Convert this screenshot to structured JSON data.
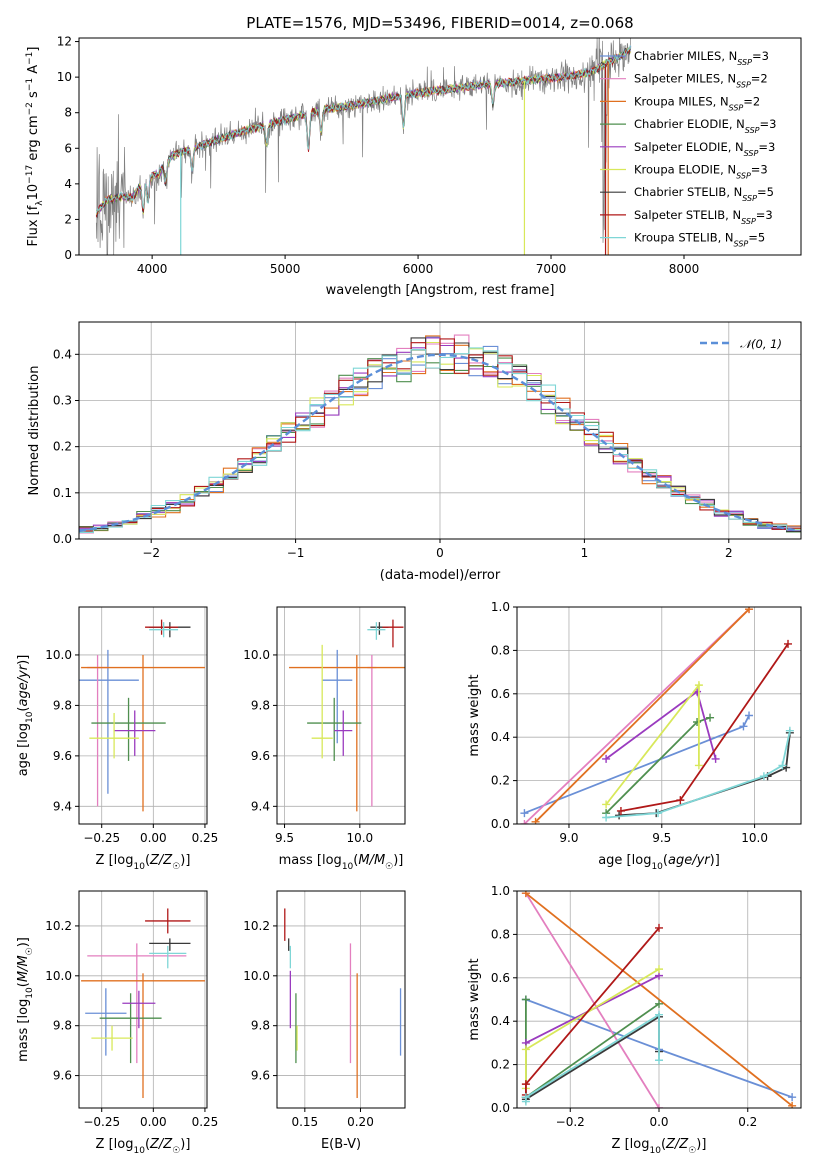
{
  "figure_title": "PLATE=1576, MJD=53496, FIBERID=0014, z=0.068",
  "colors": {
    "Chabrier MILES": "#6a8fd6",
    "Salpeter MILES": "#e37fbf",
    "Kroupa MILES": "#e07020",
    "Chabrier ELODIE": "#4f8f4f",
    "Salpeter ELODIE": "#9a3bbf",
    "Kroupa ELODIE": "#d8e85a",
    "Chabrier STELIB": "#3a3a3a",
    "Salpeter STELIB": "#b01818",
    "Kroupa STELIB": "#7fd6d6",
    "data": "#808080",
    "gauss": "#5b8fd8"
  },
  "chart_data": [
    {
      "id": "spectrum",
      "type": "line",
      "title": "PLATE=1576, MJD=53496, FIBERID=0014, z=0.068",
      "xlabel": "wavelength [Angstrom, rest frame]",
      "ylabel": "Flux [fλ10⁻¹⁷ erg cm⁻² s⁻¹ A⁻¹]",
      "xlim": [
        3450,
        8880
      ],
      "ylim": [
        0,
        12.2
      ],
      "xticks": [
        4000,
        5000,
        6000,
        7000,
        8000
      ],
      "yticks": [
        0,
        2,
        4,
        6,
        8,
        10,
        12
      ],
      "grid": false,
      "legend_position": "top-right",
      "legend": [
        "Chabrier MILES, N_SSP=3",
        "Salpeter MILES, N_SSP=2",
        "Kroupa MILES, N_SSP=2",
        "Chabrier ELODIE, N_SSP=3",
        "Salpeter ELODIE, N_SSP=3",
        "Kroupa ELODIE, N_SSP=3",
        "Chabrier STELIB, N_SSP=5",
        "Salpeter STELIB, N_SSP=3",
        "Kroupa STELIB, N_SSP=5"
      ],
      "continuum": {
        "x": [
          3580,
          3650,
          3750,
          3850,
          3950,
          4050,
          4150,
          4300,
          4500,
          4700,
          4900,
          5100,
          5300,
          5500,
          5700,
          5900,
          6100,
          6300,
          6500,
          6700,
          6900,
          7100,
          7300,
          7500,
          7600
        ],
        "y": [
          2.2,
          2.9,
          3.3,
          3.2,
          4.3,
          4.6,
          5.6,
          6.0,
          6.5,
          7.0,
          7.4,
          7.8,
          8.2,
          8.4,
          8.7,
          9.0,
          9.2,
          9.4,
          9.6,
          9.7,
          9.9,
          10.0,
          10.3,
          11.1,
          11.6
        ]
      }
    },
    {
      "id": "residuals",
      "type": "line",
      "xlabel": "(data-model)/error",
      "ylabel": "Normed distribution",
      "xlim": [
        -2.5,
        2.5
      ],
      "ylim": [
        0,
        0.47
      ],
      "xticks": [
        -2,
        -1,
        0,
        1,
        2
      ],
      "yticks": [
        0.0,
        0.1,
        0.2,
        0.3,
        0.4
      ],
      "grid": true,
      "legend_position": "top-right",
      "legend": [
        "𝒩(0, 1)"
      ],
      "bin_width": 0.1
    },
    {
      "id": "age_vs_Z",
      "type": "scatter",
      "xlabel": "Z [log10(Z/Z☉)]",
      "ylabel": "age  [log10(age/yr)]",
      "xlim": [
        -0.36,
        0.26
      ],
      "ylim": [
        9.33,
        10.19
      ],
      "xticks": [
        -0.25,
        0.0,
        0.25
      ],
      "yticks": [
        9.4,
        9.6,
        9.8,
        10.0
      ],
      "grid": true,
      "points": [
        {
          "model": "Chabrier MILES",
          "x": -0.22,
          "y": 9.9,
          "xerr": 0.15,
          "yerr": [
            0.45,
            0.12
          ]
        },
        {
          "model": "Salpeter MILES",
          "x": -0.27,
          "y": 9.95,
          "xerr": 0.05,
          "yerr": [
            0.55,
            0.05
          ]
        },
        {
          "model": "Kroupa MILES",
          "x": -0.05,
          "y": 9.95,
          "xerr": 0.3,
          "yerr": [
            0.57,
            0.05
          ]
        },
        {
          "model": "Chabrier ELODIE",
          "x": -0.12,
          "y": 9.73,
          "xerr": 0.18,
          "yerr": [
            0.15,
            0.1
          ]
        },
        {
          "model": "Salpeter ELODIE",
          "x": -0.09,
          "y": 9.7,
          "xerr": 0.1,
          "yerr": [
            0.1,
            0.08
          ]
        },
        {
          "model": "Kroupa ELODIE",
          "x": -0.19,
          "y": 9.67,
          "xerr": 0.12,
          "yerr": [
            0.08,
            0.1
          ]
        },
        {
          "model": "Chabrier STELIB",
          "x": 0.08,
          "y": 10.11,
          "xerr": 0.1,
          "yerr": [
            0.04,
            0.02
          ]
        },
        {
          "model": "Salpeter STELIB",
          "x": 0.04,
          "y": 10.11,
          "xerr": 0.08,
          "yerr": [
            0.03,
            0.03
          ]
        },
        {
          "model": "Kroupa STELIB",
          "x": 0.05,
          "y": 10.1,
          "xerr": 0.07,
          "yerr": [
            0.03,
            0.03
          ]
        }
      ]
    },
    {
      "id": "age_vs_mass",
      "type": "scatter",
      "xlabel": "mass [log10(M/M☉)]",
      "ylabel": "",
      "xlim": [
        9.45,
        10.3
      ],
      "ylim": [
        9.33,
        10.19
      ],
      "xticks": [
        9.5,
        10.0
      ],
      "yticks": [
        9.4,
        9.6,
        9.8,
        10.0
      ],
      "grid": true,
      "points": [
        {
          "model": "Chabrier MILES",
          "x": 9.85,
          "y": 9.9,
          "xerr": 0.1,
          "yerr": [
            0.25,
            0.12
          ]
        },
        {
          "model": "Salpeter MILES",
          "x": 10.08,
          "y": 9.95,
          "xerr": 0.03,
          "yerr": [
            0.55,
            0.05
          ]
        },
        {
          "model": "Kroupa MILES",
          "x": 9.98,
          "y": 9.95,
          "xerr": 0.45,
          "yerr": [
            0.57,
            0.05
          ]
        },
        {
          "model": "Chabrier ELODIE",
          "x": 9.83,
          "y": 9.73,
          "xerr": 0.18,
          "yerr": [
            0.15,
            0.1
          ]
        },
        {
          "model": "Salpeter ELODIE",
          "x": 9.89,
          "y": 9.7,
          "xerr": 0.06,
          "yerr": [
            0.1,
            0.08
          ]
        },
        {
          "model": "Kroupa ELODIE",
          "x": 9.75,
          "y": 9.67,
          "xerr": 0.07,
          "yerr": [
            0.08,
            0.37
          ]
        },
        {
          "model": "Chabrier STELIB",
          "x": 10.13,
          "y": 10.11,
          "xerr": 0.06,
          "yerr": [
            0.03,
            0.02
          ]
        },
        {
          "model": "Salpeter STELIB",
          "x": 10.22,
          "y": 10.11,
          "xerr": 0.07,
          "yerr": [
            0.08,
            0.03
          ]
        },
        {
          "model": "Kroupa STELIB",
          "x": 10.11,
          "y": 10.1,
          "xerr": 0.06,
          "yerr": [
            0.04,
            0.03
          ]
        }
      ]
    },
    {
      "id": "weight_vs_age",
      "type": "line",
      "xlabel": "age  [log10(age/yr)]",
      "ylabel": "mass weight",
      "xlim": [
        8.72,
        10.25
      ],
      "ylim": [
        0,
        1.0
      ],
      "xticks": [
        9.0,
        9.5,
        10.0
      ],
      "yticks": [
        0.0,
        0.2,
        0.4,
        0.6,
        0.8,
        1.0
      ],
      "grid": true,
      "series": [
        {
          "model": "Chabrier MILES",
          "x": [
            8.76,
            9.94,
            9.97
          ],
          "y": [
            0.05,
            0.45,
            0.5
          ]
        },
        {
          "model": "Salpeter MILES",
          "x": [
            8.76,
            9.97
          ],
          "y": [
            0.0,
            0.99
          ]
        },
        {
          "model": "Kroupa MILES",
          "x": [
            8.82,
            9.97
          ],
          "y": [
            0.01,
            0.99
          ]
        },
        {
          "model": "Chabrier ELODIE",
          "x": [
            9.2,
            9.69,
            9.76
          ],
          "y": [
            0.05,
            0.47,
            0.49
          ]
        },
        {
          "model": "Salpeter ELODIE",
          "x": [
            9.2,
            9.69,
            9.79
          ],
          "y": [
            0.3,
            0.61,
            0.3
          ]
        },
        {
          "model": "Kroupa ELODIE",
          "x": [
            9.2,
            9.7,
            9.7
          ],
          "y": [
            0.09,
            0.64,
            0.27
          ]
        },
        {
          "model": "Chabrier STELIB",
          "x": [
            9.27,
            9.47,
            10.07,
            10.17,
            10.19
          ],
          "y": [
            0.04,
            0.05,
            0.22,
            0.26,
            0.42
          ]
        },
        {
          "model": "Salpeter STELIB",
          "x": [
            9.28,
            9.6,
            10.18
          ],
          "y": [
            0.06,
            0.11,
            0.83
          ]
        },
        {
          "model": "Kroupa STELIB",
          "x": [
            9.2,
            9.48,
            10.05,
            10.15,
            10.19
          ],
          "y": [
            0.03,
            0.05,
            0.22,
            0.27,
            0.43
          ]
        }
      ]
    },
    {
      "id": "mass_vs_Z",
      "type": "scatter",
      "xlabel": "Z [log10(Z/Z☉)]",
      "ylabel": "mass [log10(M/M☉)]",
      "xlim": [
        -0.36,
        0.26
      ],
      "ylim": [
        9.47,
        10.34
      ],
      "xticks": [
        -0.25,
        0.0,
        0.25
      ],
      "yticks": [
        9.6,
        9.8,
        10.0,
        10.2
      ],
      "grid": true,
      "points": [
        {
          "model": "Chabrier MILES",
          "x": -0.23,
          "y": 9.85,
          "xerr": 0.1,
          "yerr": [
            0.17,
            0.1
          ]
        },
        {
          "model": "Salpeter MILES",
          "x": -0.08,
          "y": 10.08,
          "xerr": 0.24,
          "yerr": [
            0.43,
            0.05
          ]
        },
        {
          "model": "Kroupa MILES",
          "x": -0.05,
          "y": 9.98,
          "xerr": 0.3,
          "yerr": [
            0.47,
            0.03
          ]
        },
        {
          "model": "Chabrier ELODIE",
          "x": -0.11,
          "y": 9.83,
          "xerr": 0.15,
          "yerr": [
            0.18,
            0.1
          ]
        },
        {
          "model": "Salpeter ELODIE",
          "x": -0.07,
          "y": 9.89,
          "xerr": 0.08,
          "yerr": [
            0.1,
            0.05
          ]
        },
        {
          "model": "Kroupa ELODIE",
          "x": -0.2,
          "y": 9.75,
          "xerr": 0.1,
          "yerr": [
            0.05,
            0.05
          ]
        },
        {
          "model": "Chabrier STELIB",
          "x": 0.08,
          "y": 10.13,
          "xerr": 0.1,
          "yerr": [
            0.03,
            0.02
          ]
        },
        {
          "model": "Salpeter STELIB",
          "x": 0.07,
          "y": 10.22,
          "xerr": 0.11,
          "yerr": [
            0.05,
            0.05
          ]
        },
        {
          "model": "Kroupa STELIB",
          "x": 0.07,
          "y": 10.09,
          "xerr": 0.09,
          "yerr": [
            0.06,
            0.03
          ]
        }
      ]
    },
    {
      "id": "mass_vs_ebv",
      "type": "scatter",
      "xlabel": "E(B-V)",
      "ylabel": "",
      "xlim": [
        0.125,
        0.24
      ],
      "ylim": [
        9.47,
        10.34
      ],
      "xticks": [
        0.15,
        0.2
      ],
      "yticks": [
        9.6,
        9.8,
        10.0,
        10.2
      ],
      "grid": true,
      "points": [
        {
          "model": "Chabrier MILES",
          "x": 0.236,
          "y": 9.85,
          "xerr": 0,
          "yerr": [
            0.17,
            0.1
          ]
        },
        {
          "model": "Salpeter MILES",
          "x": 0.191,
          "y": 10.08,
          "xerr": 0,
          "yerr": [
            0.43,
            0.05
          ]
        },
        {
          "model": "Kroupa MILES",
          "x": 0.197,
          "y": 9.98,
          "xerr": 0,
          "yerr": [
            0.47,
            0.03
          ]
        },
        {
          "model": "Chabrier ELODIE",
          "x": 0.142,
          "y": 9.83,
          "xerr": 0,
          "yerr": [
            0.18,
            0.1
          ]
        },
        {
          "model": "Salpeter ELODIE",
          "x": 0.137,
          "y": 9.89,
          "xerr": 0,
          "yerr": [
            0.1,
            0.13
          ]
        },
        {
          "model": "Kroupa ELODIE",
          "x": 0.143,
          "y": 9.75,
          "xerr": 0,
          "yerr": [
            0.05,
            0.05
          ]
        },
        {
          "model": "Chabrier STELIB",
          "x": 0.1355,
          "y": 10.13,
          "xerr": 0,
          "yerr": [
            0.03,
            0.02
          ]
        },
        {
          "model": "Salpeter STELIB",
          "x": 0.132,
          "y": 10.22,
          "xerr": 0,
          "yerr": [
            0.08,
            0.05
          ]
        },
        {
          "model": "Kroupa STELIB",
          "x": 0.137,
          "y": 10.09,
          "xerr": 0,
          "yerr": [
            0.06,
            0.03
          ]
        }
      ]
    },
    {
      "id": "weight_vs_Z",
      "type": "line",
      "xlabel": "Z [log10(Z/Z☉)]",
      "ylabel": "mass weight",
      "xlim": [
        -0.32,
        0.32
      ],
      "ylim": [
        0,
        1.0
      ],
      "xticks": [
        -0.2,
        0.0,
        0.2
      ],
      "yticks": [
        0.0,
        0.2,
        0.4,
        0.6,
        0.8,
        1.0
      ],
      "grid": true,
      "series": [
        {
          "model": "Chabrier MILES",
          "x": [
            -0.3,
            0.0,
            0.3
          ],
          "y": [
            0.5,
            0.27,
            0.05
          ]
        },
        {
          "model": "Salpeter MILES",
          "x": [
            -0.3,
            0.0
          ],
          "y": [
            0.99,
            0.0
          ]
        },
        {
          "model": "Kroupa MILES",
          "x": [
            -0.3,
            0.3
          ],
          "y": [
            0.99,
            0.01
          ]
        },
        {
          "model": "Chabrier ELODIE",
          "x": [
            -0.3,
            -0.3,
            0.0
          ],
          "y": [
            0.5,
            0.05,
            0.48
          ]
        },
        {
          "model": "Salpeter ELODIE",
          "x": [
            -0.3,
            0.0
          ],
          "y": [
            0.3,
            0.61
          ]
        },
        {
          "model": "Kroupa ELODIE",
          "x": [
            -0.3,
            -0.3,
            0.0
          ],
          "y": [
            0.09,
            0.27,
            0.64
          ]
        },
        {
          "model": "Chabrier STELIB",
          "x": [
            -0.3,
            -0.3,
            0.0,
            0.0
          ],
          "y": [
            0.05,
            0.04,
            0.42,
            0.26
          ]
        },
        {
          "model": "Salpeter STELIB",
          "x": [
            -0.3,
            -0.3,
            0.0
          ],
          "y": [
            0.06,
            0.11,
            0.83
          ]
        },
        {
          "model": "Kroupa STELIB",
          "x": [
            -0.3,
            -0.3,
            0.0,
            0.0
          ],
          "y": [
            0.03,
            0.05,
            0.43,
            0.22
          ]
        }
      ]
    }
  ]
}
